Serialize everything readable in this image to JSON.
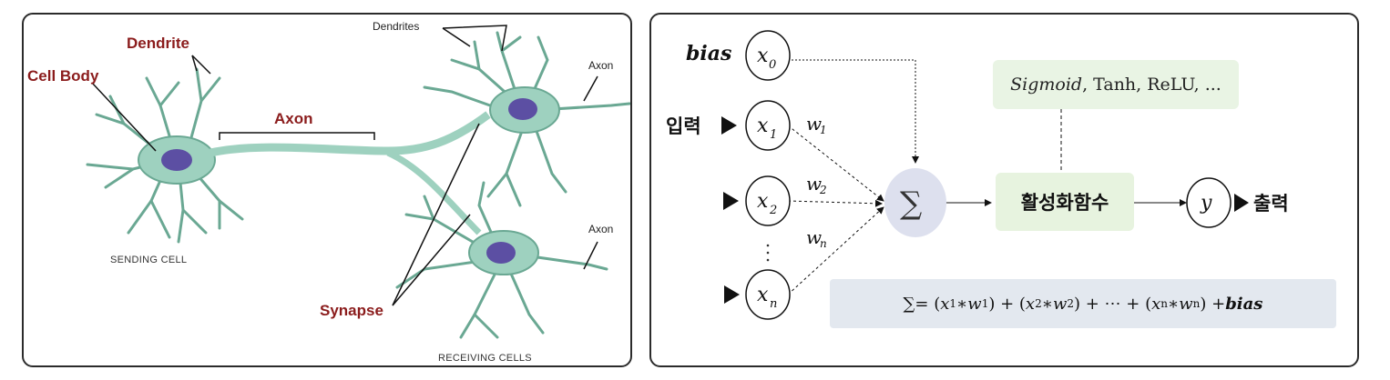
{
  "left": {
    "dendrite_label": "Dendrite",
    "cell_body_label": "Cell Body",
    "axon_label": "Axon",
    "dendrites_label": "Dendrites",
    "axon_right_top": "Axon",
    "axon_right_bottom": "Axon",
    "synapse_label": "Synapse",
    "sending_cell": "SENDING CELL",
    "receiving_cells": "RECEIVING CELLS"
  },
  "right": {
    "bias_label": "bias",
    "input_label": "입력",
    "output_label": "출력",
    "inputs": [
      {
        "var": "x",
        "sub": "0"
      },
      {
        "var": "x",
        "sub": "1"
      },
      {
        "var": "x",
        "sub": "2"
      },
      {
        "var": "x",
        "sub": "n"
      }
    ],
    "weights": [
      {
        "var": "w",
        "sub": "1"
      },
      {
        "var": "w",
        "sub": "2"
      },
      {
        "var": "w",
        "sub": "n"
      }
    ],
    "sum_symbol": "∑",
    "activation_label": "활성화함수",
    "activation_examples": {
      "italic": "Sigmoid",
      "rest": ", Tanh, ReLU, ..."
    },
    "output_var": "y",
    "formula": {
      "sum": "∑",
      "eq": " = (",
      "x1": "x",
      "s1": "1",
      "m1": " ∗ ",
      "w1": "w",
      "t1": "1",
      "p1": ") + (",
      "x2": "x",
      "s2": "2",
      "m2": " ∗ ",
      "w2": "w",
      "t2": "2",
      "p2": ") + ⋯ + (",
      "xn": "x",
      "sn": "n",
      "mn": " ∗ ",
      "wn": "w",
      "tn": "n",
      "p3": ") + ",
      "bias": "bias"
    }
  },
  "colors": {
    "neuron_fill": "#9ed1bf",
    "neuron_stroke": "#5f9e88",
    "nucleus": "#5c4fa3",
    "label_red": "#8b1c1c",
    "sum_circle": "#dde0ee",
    "activation_bg": "#e7f3df",
    "formula_bg": "#e3e8ef"
  }
}
